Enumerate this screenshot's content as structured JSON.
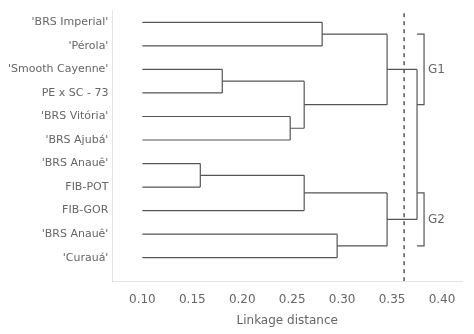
{
  "chart_data": {
    "type": "dendrogram",
    "xlabel": "Linkage distance",
    "labels": [
      "'BRS Imperial'",
      "'Pérola'",
      "'Smooth Cayenne'",
      "PE x SC - 73",
      "'BRS Vitória'",
      "'BRS Ajubá'",
      "'BRS Anauê'",
      "FIB-POT",
      "FIB-GOR",
      "'BRS Anauê'",
      "'Curauá'"
    ],
    "xlim": [
      0.07,
      0.42
    ],
    "xticks": [
      {
        "value": 0.1,
        "label": "0.10"
      },
      {
        "value": 0.15,
        "label": "0.15"
      },
      {
        "value": 0.2,
        "label": "0.20"
      },
      {
        "value": 0.25,
        "label": "0.25"
      },
      {
        "value": 0.3,
        "label": "0.30"
      },
      {
        "value": 0.35,
        "label": "0.35"
      },
      {
        "value": 0.4,
        "label": "0.40"
      }
    ],
    "ylim": [
      0.0,
      11.5
    ],
    "grid": false,
    "color": "#555555",
    "segments": [
      {
        "type": "h",
        "y": 11.0,
        "x0": 0.1,
        "x1": 0.28
      },
      {
        "type": "h",
        "y": 10.0,
        "x0": 0.1,
        "x1": 0.28
      },
      {
        "type": "v",
        "x": 0.28,
        "y0": 10.0,
        "y1": 11.0
      },
      {
        "type": "h",
        "y": 10.5,
        "x0": 0.28,
        "x1": 0.345
      },
      {
        "type": "h",
        "y": 9.0,
        "x0": 0.1,
        "x1": 0.18
      },
      {
        "type": "h",
        "y": 8.0,
        "x0": 0.1,
        "x1": 0.18
      },
      {
        "type": "v",
        "x": 0.18,
        "y0": 8.0,
        "y1": 9.0
      },
      {
        "type": "h",
        "y": 8.5,
        "x0": 0.18,
        "x1": 0.262
      },
      {
        "type": "h",
        "y": 7.0,
        "x0": 0.1,
        "x1": 0.248
      },
      {
        "type": "h",
        "y": 6.0,
        "x0": 0.1,
        "x1": 0.248
      },
      {
        "type": "v",
        "x": 0.248,
        "y0": 6.0,
        "y1": 7.0
      },
      {
        "type": "h",
        "y": 6.5,
        "x0": 0.248,
        "x1": 0.262
      },
      {
        "type": "v",
        "x": 0.262,
        "y0": 6.5,
        "y1": 8.5
      },
      {
        "type": "h",
        "y": 7.5,
        "x0": 0.262,
        "x1": 0.345
      },
      {
        "type": "v",
        "x": 0.345,
        "y0": 7.5,
        "y1": 10.5
      },
      {
        "type": "h",
        "y": 9.0,
        "x0": 0.345,
        "x1": 0.375
      },
      {
        "type": "h",
        "y": 5.0,
        "x0": 0.1,
        "x1": 0.158
      },
      {
        "type": "h",
        "y": 4.0,
        "x0": 0.1,
        "x1": 0.158
      },
      {
        "type": "v",
        "x": 0.158,
        "y0": 4.0,
        "y1": 5.0
      },
      {
        "type": "h",
        "y": 4.5,
        "x0": 0.158,
        "x1": 0.262
      },
      {
        "type": "h",
        "y": 3.0,
        "x0": 0.1,
        "x1": 0.262
      },
      {
        "type": "v",
        "x": 0.262,
        "y0": 3.0,
        "y1": 4.5
      },
      {
        "type": "h",
        "y": 3.75,
        "x0": 0.262,
        "x1": 0.345
      },
      {
        "type": "h",
        "y": 2.0,
        "x0": 0.1,
        "x1": 0.295
      },
      {
        "type": "h",
        "y": 1.0,
        "x0": 0.1,
        "x1": 0.295
      },
      {
        "type": "v",
        "x": 0.295,
        "y0": 1.0,
        "y1": 2.0
      },
      {
        "type": "h",
        "y": 1.5,
        "x0": 0.295,
        "x1": 0.345
      },
      {
        "type": "v",
        "x": 0.345,
        "y0": 1.5,
        "y1": 3.75
      },
      {
        "type": "h",
        "y": 2.625,
        "x0": 0.345,
        "x1": 0.375
      },
      {
        "type": "v",
        "x": 0.375,
        "y0": 2.625,
        "y1": 9.0
      }
    ],
    "lines": [
      {
        "x": 0.362,
        "line_style": "dashed",
        "color": "#000000"
      }
    ],
    "groups": [
      {
        "label": "G1",
        "x": 0.375,
        "ytop": 10.5,
        "ybot": 7.5
      },
      {
        "label": "G2",
        "x": 0.375,
        "ytop": 3.75,
        "ybot": 1.5
      }
    ]
  }
}
